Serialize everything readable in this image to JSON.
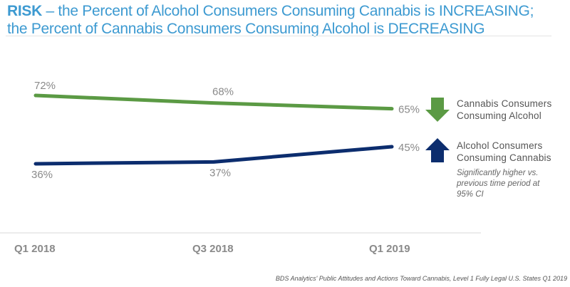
{
  "title": {
    "bold": "RISK",
    "line1_rest": " – the Percent of Alcohol Consumers Consuming Cannabis is INCREASING;",
    "line2": "the Percent of Cannabis Consumers Consuming Alcohol is DECREASING"
  },
  "chart_data": {
    "type": "line",
    "title": "RISK – the Percent of Alcohol Consumers Consuming Cannabis is INCREASING; the Percent of Cannabis Consumers Consuming Alcohol is DECREASING",
    "xlabel": "",
    "ylabel": "",
    "categories": [
      "Q1 2018",
      "Q3 2018",
      "Q1 2019"
    ],
    "ylim": [
      0,
      100
    ],
    "grid": false,
    "series": [
      {
        "name": "Cannabis Consumers Consuming Alcohol",
        "values": [
          72,
          68,
          65
        ],
        "labels": [
          "72%",
          "68%",
          "65%"
        ],
        "color": "#5b9a44",
        "trend": "down"
      },
      {
        "name": "Alcohol Consumers Consuming Cannabis",
        "values": [
          36,
          37,
          45
        ],
        "labels": [
          "36%",
          "37%",
          "45%"
        ],
        "color": "#0c2d6e",
        "trend": "up"
      }
    ],
    "legend_position": "right"
  },
  "legend": {
    "green_line1": "Cannabis Consumers",
    "green_line2": "Consuming Alcohol",
    "blue_line1": "Alcohol Consumers",
    "blue_line2": "Consuming Cannabis"
  },
  "note": "Significantly higher vs. previous time period at 95% CI",
  "source": "BDS Analytics' Public Attitudes and Actions Toward Cannabis, Level 1 Fully Legal U.S. States Q1 2019"
}
